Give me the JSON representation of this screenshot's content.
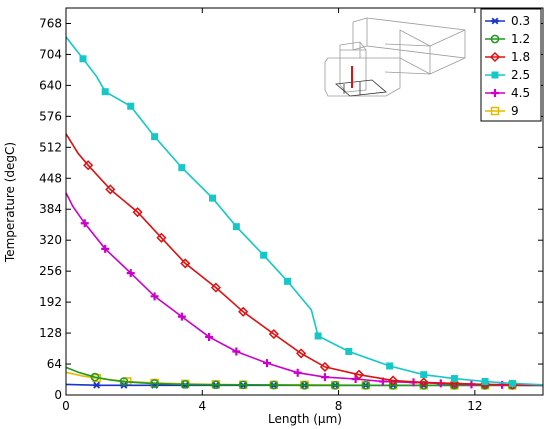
{
  "chart_data": {
    "type": "line",
    "xlabel": "Length (µm)",
    "ylabel": "Temperature (degC)",
    "xlim": [
      0,
      14
    ],
    "ylim": [
      0,
      800
    ],
    "x_ticks": [
      "0",
      "4",
      "8",
      "12"
    ],
    "x_tick_values": [
      0,
      4,
      8,
      12
    ],
    "y_ticks": [
      "0",
      "64",
      "128",
      "192",
      "256",
      "320",
      "384",
      "448",
      "512",
      "576",
      "640",
      "704",
      "768"
    ],
    "y_tick_values": [
      0,
      64,
      128,
      192,
      256,
      320,
      384,
      448,
      512,
      576,
      640,
      704,
      768
    ],
    "legend_position": "top-right",
    "grid": false,
    "inset": "3D wireframe geometry of the device structure",
    "series": [
      {
        "name": "0.3",
        "color": "#1a33cc",
        "marker": "asterisk",
        "x": [
          0,
          1,
          2,
          3,
          4,
          5,
          6,
          7,
          8,
          9,
          10,
          11,
          12,
          13,
          14
        ],
        "y": [
          22,
          20,
          20,
          20,
          20,
          20,
          20,
          20,
          20,
          20,
          20,
          20,
          20,
          20,
          20
        ],
        "marker_x": [
          0.9,
          1.7,
          2.6,
          3.5,
          4.4,
          5.2,
          6.1,
          7.0,
          7.9,
          8.8,
          9.6,
          10.5,
          11.4,
          12.3,
          13.1
        ]
      },
      {
        "name": "1.2",
        "color": "#1f9a1f",
        "marker": "circle",
        "x": [
          0,
          0.4,
          0.85,
          1.3,
          1.8,
          2.5,
          3.5,
          4.5,
          5.5,
          7,
          9,
          11,
          13,
          14
        ],
        "y": [
          57,
          46,
          37,
          31,
          27,
          24,
          22,
          21,
          21,
          20,
          20,
          20,
          20,
          20
        ],
        "marker_x": [
          0.85,
          1.7,
          2.6,
          3.5,
          4.4,
          5.2,
          6.1,
          7.0,
          7.9,
          8.8,
          9.6,
          10.5,
          11.4,
          12.3,
          13.1
        ]
      },
      {
        "name": "1.8",
        "color": "#e01010",
        "marker": "diamond",
        "x": [
          0,
          0.35,
          0.65,
          1.3,
          2.1,
          2.8,
          3.5,
          4.4,
          5.2,
          6.1,
          6.9,
          7.6,
          8.6,
          9.6,
          10.5,
          11.4,
          12.3,
          13.1,
          14
        ],
        "y": [
          540,
          500,
          475,
          425,
          378,
          325,
          272,
          222,
          172,
          126,
          86,
          58,
          42,
          30,
          26,
          24,
          22,
          21,
          20
        ],
        "marker_x": [
          0.65,
          1.3,
          2.1,
          2.8,
          3.5,
          4.4,
          5.2,
          6.1,
          6.9,
          7.6,
          8.6,
          9.6,
          10.5,
          11.4,
          12.3,
          13.1
        ]
      },
      {
        "name": "2.5",
        "color": "#14c8c8",
        "marker": "square",
        "x": [
          0,
          0.5,
          0.9,
          1.15,
          1.9,
          2.6,
          3.4,
          4.3,
          5.0,
          5.8,
          6.5,
          7.2,
          7.4,
          8.3,
          9.5,
          10.5,
          11.4,
          12.3,
          13.1,
          14
        ],
        "y": [
          740,
          695,
          658,
          627,
          597,
          534,
          470,
          407,
          348,
          289,
          235,
          176,
          122,
          90,
          60,
          42,
          34,
          28,
          24,
          21
        ],
        "marker_x": [
          0.5,
          1.15,
          1.9,
          2.6,
          3.4,
          4.3,
          5.0,
          5.8,
          6.5,
          7.4,
          8.3,
          9.5,
          10.5,
          11.4,
          12.3,
          13.1
        ]
      },
      {
        "name": "4.5",
        "color": "#cc00cc",
        "marker": "plus",
        "x": [
          0,
          0.2,
          0.55,
          1.15,
          1.9,
          2.6,
          3.4,
          4.2,
          5.0,
          5.9,
          6.8,
          7.6,
          8.5,
          9.3,
          10.2,
          11.0,
          11.9,
          12.8,
          13.3,
          14
        ],
        "y": [
          418,
          390,
          355,
          302,
          252,
          204,
          162,
          120,
          90,
          66,
          46,
          37,
          33,
          28,
          26,
          24,
          22,
          21,
          20,
          20
        ],
        "marker_x": [
          0.55,
          1.15,
          1.9,
          2.6,
          3.4,
          4.2,
          5.0,
          5.9,
          6.8,
          7.6,
          8.5,
          9.3,
          10.2,
          11.0,
          11.9,
          12.8
        ]
      },
      {
        "name": "9",
        "color": "#e6b800",
        "marker": "square",
        "x": [
          0,
          0.5,
          1,
          1.8,
          2.6,
          3.5,
          4.4,
          5.5,
          7,
          9,
          11,
          13,
          14
        ],
        "y": [
          47,
          39,
          34,
          28,
          25,
          23,
          22,
          21,
          21,
          20,
          20,
          20,
          20
        ],
        "marker_x": [
          0.9,
          1.8,
          2.6,
          3.5,
          4.4,
          5.2,
          6.1,
          7.0,
          7.9,
          8.8,
          9.6,
          10.5,
          11.4,
          12.3,
          13.1
        ]
      }
    ]
  }
}
